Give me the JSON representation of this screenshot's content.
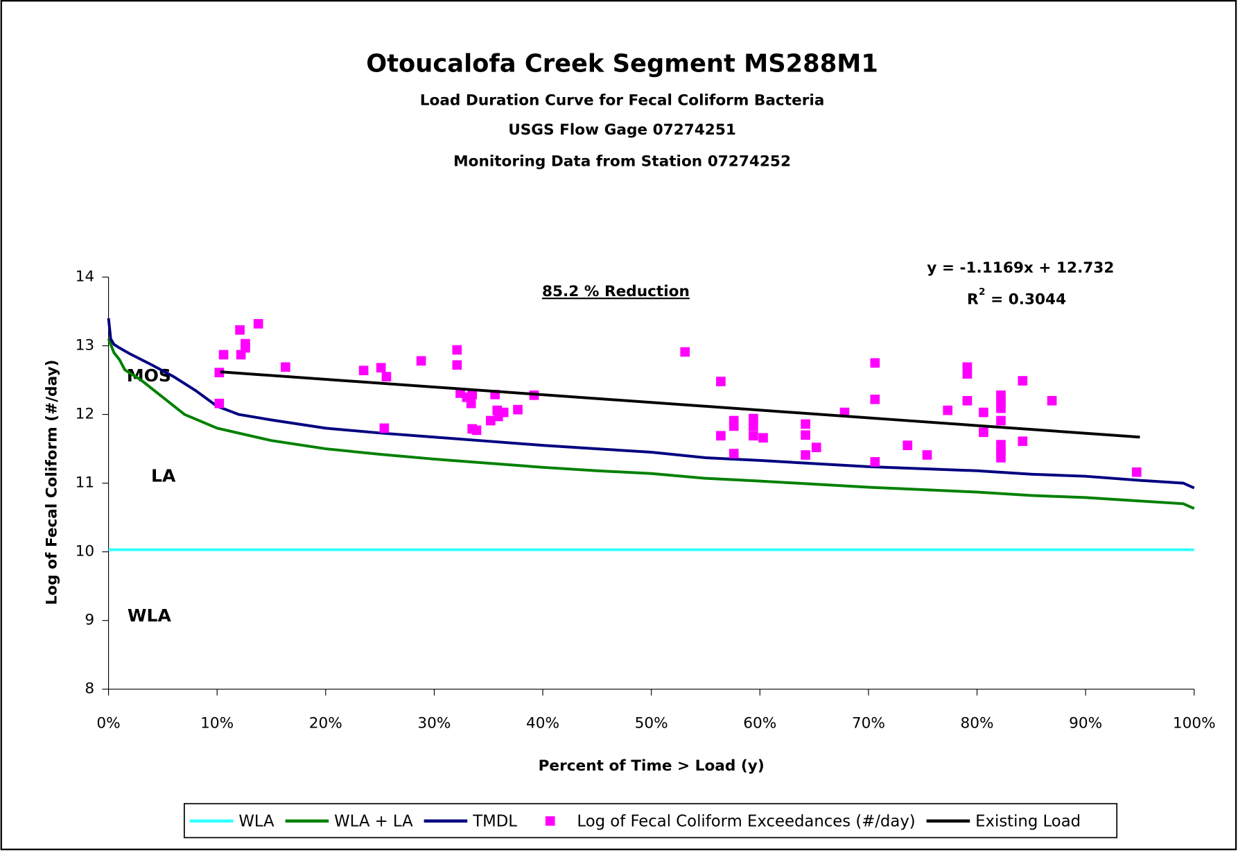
{
  "chart_data": {
    "type": "line",
    "title": "Otoucalofa Creek Segment MS288M1",
    "subtitles": [
      "Load Duration Curve for Fecal Coliform Bacteria",
      "USGS Flow Gage 07274251",
      "Monitoring Data from Station 07274252"
    ],
    "x_label": "Percent of Time > Load (y)",
    "y_label": "Log of Fecal Coliform (#/day)",
    "xlim": [
      0,
      100
    ],
    "xticks": [
      {
        "value": 0,
        "label": "0%"
      },
      {
        "value": 10,
        "label": "10%"
      },
      {
        "value": 20,
        "label": "20%"
      },
      {
        "value": 30,
        "label": "30%"
      },
      {
        "value": 40,
        "label": "40%"
      },
      {
        "value": 50,
        "label": "50%"
      },
      {
        "value": 60,
        "label": "60%"
      },
      {
        "value": 70,
        "label": "70%"
      },
      {
        "value": 80,
        "label": "80%"
      },
      {
        "value": 90,
        "label": "90%"
      },
      {
        "value": 100,
        "label": "100%"
      }
    ],
    "ylim": [
      8,
      14
    ],
    "yticks": [
      8,
      9,
      10,
      11,
      12,
      13,
      14
    ],
    "annotations": {
      "reduction": "85.2 % Reduction",
      "equation": "y = -1.1169x + 12.732",
      "r2_base": "R",
      "r2_exp": "2",
      "r2_value": "= 0.3044",
      "mos": "MOS",
      "la": "LA",
      "wla": "WLA"
    },
    "series": [
      {
        "name": "WLA",
        "kind": "line",
        "color": "#33ffff",
        "x": [
          0,
          100
        ],
        "values": [
          10.03,
          10.03
        ]
      },
      {
        "name": "WLA + LA",
        "kind": "line",
        "color": "#008000",
        "x": [
          0,
          0.5,
          1,
          1.5,
          3,
          5,
          7,
          10,
          15,
          20,
          25,
          30,
          35,
          40,
          45,
          50,
          55,
          60,
          70,
          80,
          85,
          90,
          95,
          99,
          100
        ],
        "values": [
          13.1,
          12.9,
          12.8,
          12.65,
          12.5,
          12.25,
          12.0,
          11.8,
          11.62,
          11.5,
          11.42,
          11.35,
          11.29,
          11.23,
          11.18,
          11.14,
          11.07,
          11.03,
          10.94,
          10.87,
          10.82,
          10.79,
          10.74,
          10.7,
          10.63
        ]
      },
      {
        "name": "TMDL",
        "kind": "line",
        "color": "#000080",
        "x": [
          0,
          0.2,
          0.5,
          1,
          2,
          4,
          6,
          8,
          10,
          12,
          15,
          20,
          25,
          30,
          35,
          40,
          45,
          50,
          55,
          60,
          70,
          80,
          85,
          90,
          95,
          99,
          100
        ],
        "values": [
          13.4,
          13.1,
          13.02,
          12.97,
          12.88,
          12.72,
          12.55,
          12.35,
          12.12,
          12.0,
          11.92,
          11.8,
          11.73,
          11.67,
          11.61,
          11.55,
          11.5,
          11.45,
          11.37,
          11.33,
          11.24,
          11.18,
          11.13,
          11.1,
          11.04,
          11.0,
          10.93
        ]
      },
      {
        "name": "Log of Fecal Coliform Exceedances (#/day)",
        "kind": "scatter",
        "color": "#ff00ff",
        "x": [
          10.2,
          10.6,
          10.2,
          12.1,
          12.6,
          12.6,
          12.2,
          13.8,
          16.3,
          23.5,
          25.1,
          25.6,
          25.4,
          28.8,
          32.1,
          32.1,
          32.4,
          33.0,
          33.4,
          33.5,
          33.5,
          33.9,
          35.2,
          35.6,
          35.8,
          35.9,
          36.4,
          37.7,
          39.2,
          53.1,
          56.4,
          56.4,
          57.6,
          57.6,
          57.6,
          59.4,
          59.4,
          59.4,
          60.3,
          64.2,
          64.2,
          64.2,
          65.2,
          67.8,
          70.6,
          70.6,
          70.6,
          73.6,
          75.4,
          77.3,
          79.1,
          79.1,
          79.1,
          80.6,
          80.6,
          82.2,
          82.2,
          82.2,
          82.2,
          82.2,
          82.2,
          82.2,
          84.2,
          84.2,
          86.9,
          94.7
        ],
        "values": [
          12.61,
          12.87,
          12.16,
          13.23,
          13.03,
          12.97,
          12.87,
          13.32,
          12.69,
          12.64,
          12.68,
          12.55,
          11.8,
          12.78,
          12.94,
          12.72,
          12.31,
          12.25,
          12.16,
          12.29,
          11.79,
          11.77,
          11.91,
          12.29,
          12.06,
          11.97,
          12.03,
          12.07,
          12.28,
          12.91,
          12.48,
          11.69,
          11.91,
          11.83,
          11.43,
          11.94,
          11.83,
          11.69,
          11.66,
          11.86,
          11.7,
          11.41,
          11.52,
          12.03,
          12.75,
          12.22,
          11.31,
          11.55,
          11.41,
          12.06,
          12.69,
          12.59,
          12.2,
          12.03,
          11.74,
          12.28,
          12.18,
          12.09,
          11.91,
          11.56,
          11.46,
          11.37,
          12.49,
          11.61,
          12.2,
          11.16
        ]
      },
      {
        "name": "Existing Load",
        "kind": "line",
        "color": "#000000",
        "x": [
          10.3,
          95
        ],
        "values": [
          12.62,
          11.67
        ]
      }
    ]
  }
}
